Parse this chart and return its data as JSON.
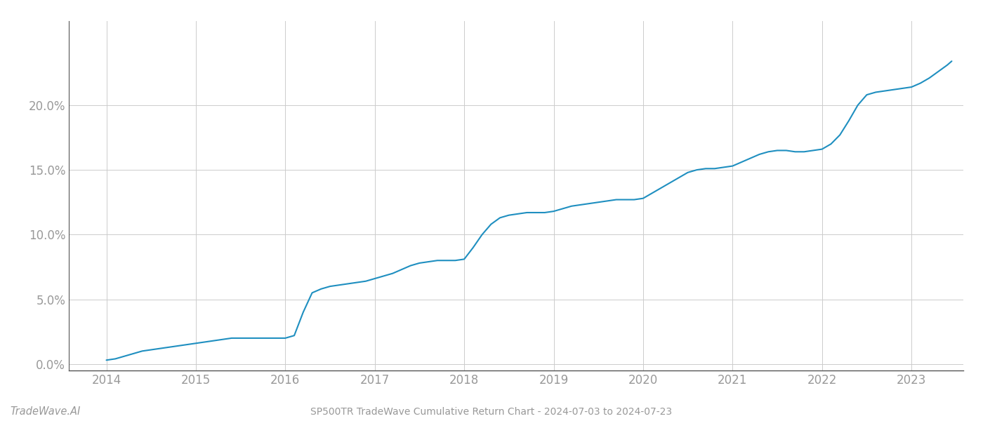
{
  "title": "SP500TR TradeWave Cumulative Return Chart - 2024-07-03 to 2024-07-23",
  "watermark": "TradeWave.AI",
  "line_color": "#1f8fc0",
  "line_width": 1.5,
  "background_color": "#ffffff",
  "grid_color": "#cccccc",
  "x_years": [
    2014,
    2015,
    2016,
    2017,
    2018,
    2019,
    2020,
    2021,
    2022,
    2023
  ],
  "x_data": [
    2014.0,
    2014.1,
    2014.2,
    2014.3,
    2014.4,
    2014.5,
    2014.6,
    2014.7,
    2014.8,
    2014.9,
    2015.0,
    2015.1,
    2015.2,
    2015.3,
    2015.4,
    2015.5,
    2015.6,
    2015.7,
    2015.8,
    2015.9,
    2016.0,
    2016.1,
    2016.2,
    2016.3,
    2016.4,
    2016.5,
    2016.6,
    2016.7,
    2016.8,
    2016.9,
    2017.0,
    2017.1,
    2017.2,
    2017.3,
    2017.4,
    2017.5,
    2017.6,
    2017.7,
    2017.8,
    2017.9,
    2018.0,
    2018.1,
    2018.2,
    2018.3,
    2018.4,
    2018.5,
    2018.6,
    2018.7,
    2018.8,
    2018.9,
    2019.0,
    2019.1,
    2019.2,
    2019.3,
    2019.4,
    2019.5,
    2019.6,
    2019.7,
    2019.8,
    2019.9,
    2020.0,
    2020.1,
    2020.2,
    2020.3,
    2020.4,
    2020.5,
    2020.6,
    2020.7,
    2020.8,
    2020.9,
    2021.0,
    2021.1,
    2021.2,
    2021.3,
    2021.4,
    2021.5,
    2021.6,
    2021.7,
    2021.8,
    2021.9,
    2022.0,
    2022.1,
    2022.2,
    2022.3,
    2022.4,
    2022.5,
    2022.6,
    2022.7,
    2022.8,
    2022.9,
    2023.0,
    2023.1,
    2023.2,
    2023.3,
    2023.4,
    2023.45
  ],
  "y_data": [
    0.003,
    0.004,
    0.006,
    0.008,
    0.01,
    0.011,
    0.012,
    0.013,
    0.014,
    0.015,
    0.016,
    0.017,
    0.018,
    0.019,
    0.02,
    0.02,
    0.02,
    0.02,
    0.02,
    0.02,
    0.02,
    0.022,
    0.04,
    0.055,
    0.058,
    0.06,
    0.061,
    0.062,
    0.063,
    0.064,
    0.066,
    0.068,
    0.07,
    0.073,
    0.076,
    0.078,
    0.079,
    0.08,
    0.08,
    0.08,
    0.081,
    0.09,
    0.1,
    0.108,
    0.113,
    0.115,
    0.116,
    0.117,
    0.117,
    0.117,
    0.118,
    0.12,
    0.122,
    0.123,
    0.124,
    0.125,
    0.126,
    0.127,
    0.127,
    0.127,
    0.128,
    0.132,
    0.136,
    0.14,
    0.144,
    0.148,
    0.15,
    0.151,
    0.151,
    0.152,
    0.153,
    0.156,
    0.159,
    0.162,
    0.164,
    0.165,
    0.165,
    0.164,
    0.164,
    0.165,
    0.166,
    0.17,
    0.177,
    0.188,
    0.2,
    0.208,
    0.21,
    0.211,
    0.212,
    0.213,
    0.214,
    0.217,
    0.221,
    0.226,
    0.231,
    0.234
  ],
  "ylim": [
    -0.005,
    0.265
  ],
  "yticks": [
    0.0,
    0.05,
    0.1,
    0.15,
    0.2
  ],
  "xlim": [
    2013.58,
    2023.58
  ],
  "tick_color": "#999999",
  "tick_fontsize": 12,
  "title_fontsize": 10,
  "watermark_fontsize": 10.5
}
